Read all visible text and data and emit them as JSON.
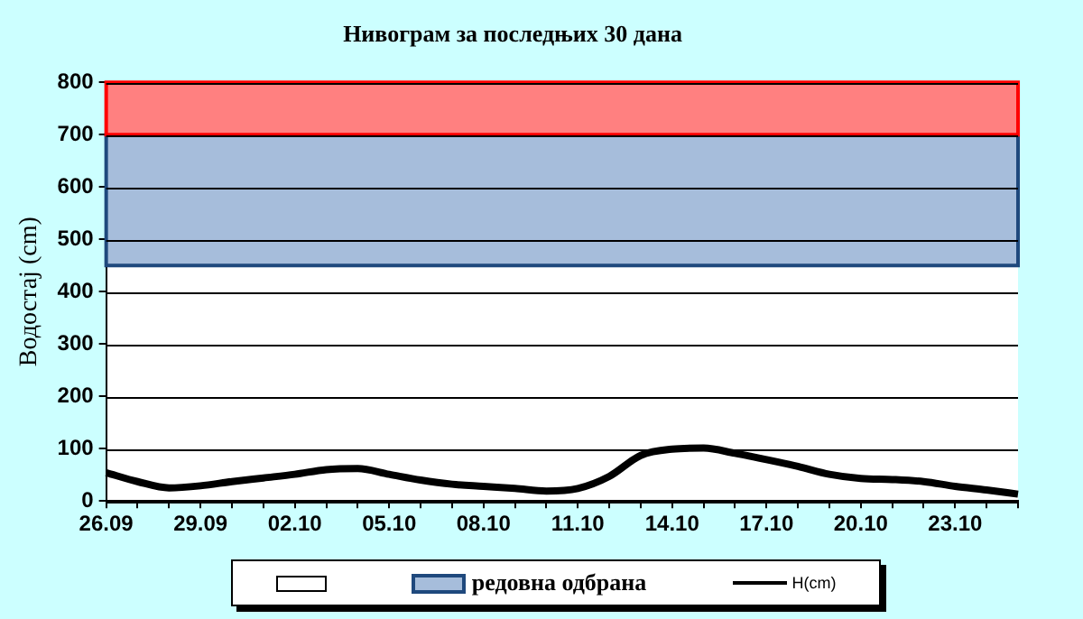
{
  "chart_data": {
    "type": "line",
    "title": "Нивограм за последњих 30 дана",
    "ylabel": "Водостај (cm)",
    "categories": [
      "26.09",
      null,
      null,
      "29.09",
      null,
      null,
      "02.10",
      null,
      null,
      "05.10",
      null,
      null,
      "08.10",
      null,
      null,
      "11.10",
      null,
      null,
      "14.10",
      null,
      null,
      "17.10",
      null,
      null,
      "20.10",
      null,
      null,
      "23.10",
      null,
      null
    ],
    "series": [
      {
        "name": "H(cm)",
        "color": "#000000",
        "values": [
          54,
          37,
          25,
          29,
          37,
          44,
          51,
          60,
          62,
          51,
          40,
          32,
          28,
          24,
          19,
          24,
          47,
          87,
          99,
          101,
          91,
          79,
          66,
          51,
          43,
          41,
          37,
          28,
          21,
          13
        ]
      }
    ],
    "ylim": [
      0,
      800
    ],
    "yticks": [
      0,
      100,
      200,
      300,
      400,
      500,
      600,
      700,
      800
    ],
    "grid": "y",
    "legend": "bottom",
    "marker": "none",
    "line_style": "solid",
    "bands": [
      {
        "axis": "y",
        "from": 450,
        "to": 700,
        "label": "редовна одбрана",
        "color": "#a6bddb"
      },
      {
        "axis": "y",
        "from": 700,
        "to": 800,
        "label": null,
        "color": "#ff8080"
      }
    ]
  }
}
